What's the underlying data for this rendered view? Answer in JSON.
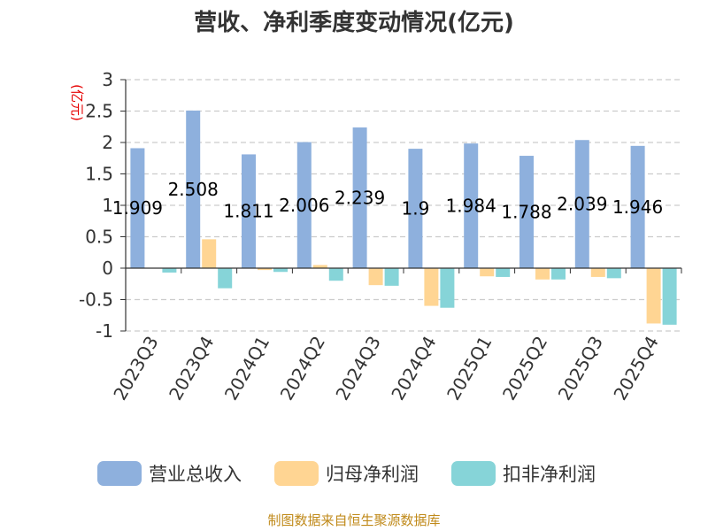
{
  "chart_data": {
    "type": "bar",
    "title": "营收、净利季度变动情况(亿元)",
    "ylabel": "(亿元)",
    "ylim": [
      -1,
      3
    ],
    "yticks": [
      3,
      2.5,
      2,
      1.5,
      1,
      0.5,
      0,
      -0.5,
      -1
    ],
    "grid": true,
    "legend_position": "bottom",
    "categories": [
      "2023Q3",
      "2023Q4",
      "2024Q1",
      "2024Q2",
      "2024Q3",
      "2024Q4",
      "2025Q1",
      "2025Q2",
      "2025Q3",
      "2025Q4"
    ],
    "series": [
      {
        "name": "营业总收入",
        "color": "#8eb0dd",
        "values": [
          1.909,
          2.508,
          1.811,
          2.006,
          2.239,
          1.9,
          1.984,
          1.788,
          2.039,
          1.946
        ],
        "labels": [
          "1.909",
          "2.508",
          "1.811",
          "2.006",
          "2.239",
          "1.9",
          "1.984",
          "1.788",
          "2.039",
          "1.946"
        ]
      },
      {
        "name": "归母净利润",
        "color": "#ffd593",
        "values": [
          0,
          0.46,
          -0.03,
          0.05,
          -0.27,
          -0.6,
          -0.13,
          -0.18,
          -0.14,
          -0.88
        ]
      },
      {
        "name": "扣非净利润",
        "color": "#86d4d8",
        "values": [
          -0.07,
          -0.32,
          -0.06,
          -0.2,
          -0.28,
          -0.63,
          -0.14,
          -0.18,
          -0.16,
          -0.9
        ]
      }
    ],
    "source": "制图数据来自恒生聚源数据库"
  }
}
